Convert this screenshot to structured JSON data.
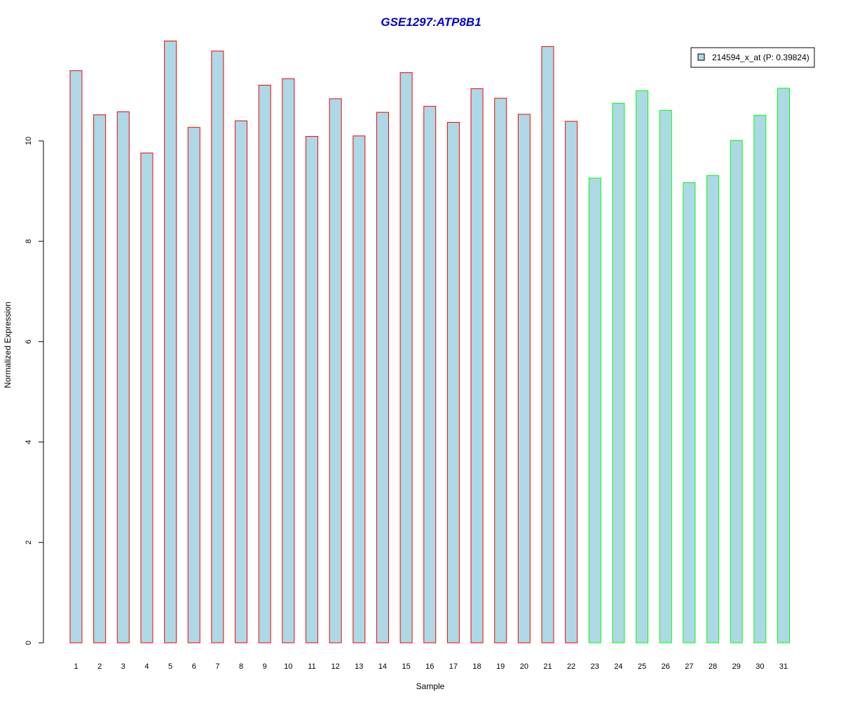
{
  "chart_data": {
    "type": "bar",
    "title": "GSE1297:ATP8B1",
    "xlabel": "Sample",
    "ylabel": "Normalized Expression",
    "categories": [
      "1",
      "2",
      "3",
      "4",
      "5",
      "6",
      "7",
      "8",
      "9",
      "10",
      "11",
      "12",
      "13",
      "14",
      "15",
      "16",
      "17",
      "18",
      "19",
      "20",
      "21",
      "22",
      "23",
      "24",
      "25",
      "26",
      "27",
      "28",
      "29",
      "30",
      "31"
    ],
    "series": [
      {
        "name": "214594_x_at (P: 0.39824)",
        "values": [
          11.4,
          10.52,
          10.58,
          9.76,
          11.99,
          10.27,
          11.79,
          10.4,
          11.11,
          11.24,
          10.09,
          10.84,
          10.1,
          10.57,
          11.36,
          10.69,
          10.37,
          11.04,
          10.85,
          10.53,
          11.88,
          10.39,
          9.26,
          10.75,
          11.0,
          10.61,
          9.17,
          9.31,
          10.01,
          10.51,
          11.05
        ]
      }
    ],
    "group_colors": [
      "#ff0000",
      "#ff0000",
      "#ff0000",
      "#ff0000",
      "#ff0000",
      "#ff0000",
      "#ff0000",
      "#ff0000",
      "#ff0000",
      "#ff0000",
      "#ff0000",
      "#ff0000",
      "#ff0000",
      "#ff0000",
      "#ff0000",
      "#ff0000",
      "#ff0000",
      "#ff0000",
      "#ff0000",
      "#ff0000",
      "#ff0000",
      "#ff0000",
      "#00ff00",
      "#00ff00",
      "#00ff00",
      "#00ff00",
      "#00ff00",
      "#00ff00",
      "#00ff00",
      "#00ff00",
      "#00ff00"
    ],
    "y_ticks": [
      "0",
      "2",
      "4",
      "6",
      "8",
      "10"
    ],
    "ylim": [
      0,
      12
    ],
    "fill_color": "#add8e6",
    "title_color": "#0000cd",
    "grid": false,
    "legend_position": "top-right"
  }
}
